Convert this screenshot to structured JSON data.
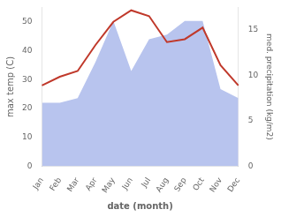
{
  "chart_data": {
    "type": "line",
    "categories": [
      "Jan",
      "Feb",
      "Mar",
      "Apr",
      "May",
      "Jun",
      "Jul",
      "Aug",
      "Sep",
      "Oct",
      "Nov",
      "Dec"
    ],
    "xlabel": "date (month)",
    "ylabel": "max temp (C)",
    "y2label": "med. precipitation (kg/m2)",
    "series": [
      {
        "type": "area",
        "color": "#b8c4ee",
        "axis": "y2",
        "values": [
          7,
          7,
          7.5,
          11.5,
          16,
          10.5,
          14,
          14.5,
          16,
          16,
          8.5,
          7.5
        ]
      },
      {
        "type": "line",
        "color": "#c0392b",
        "values": [
          28,
          31,
          33,
          42,
          50,
          54,
          52,
          43,
          44,
          48,
          35,
          28
        ]
      }
    ],
    "ylim": [
      0,
      55
    ],
    "yticks": [
      0,
      10,
      20,
      30,
      40,
      50
    ],
    "y2lim": [
      0,
      17.5
    ],
    "y2ticks": [
      0,
      5,
      10,
      15
    ],
    "grid": false
  }
}
